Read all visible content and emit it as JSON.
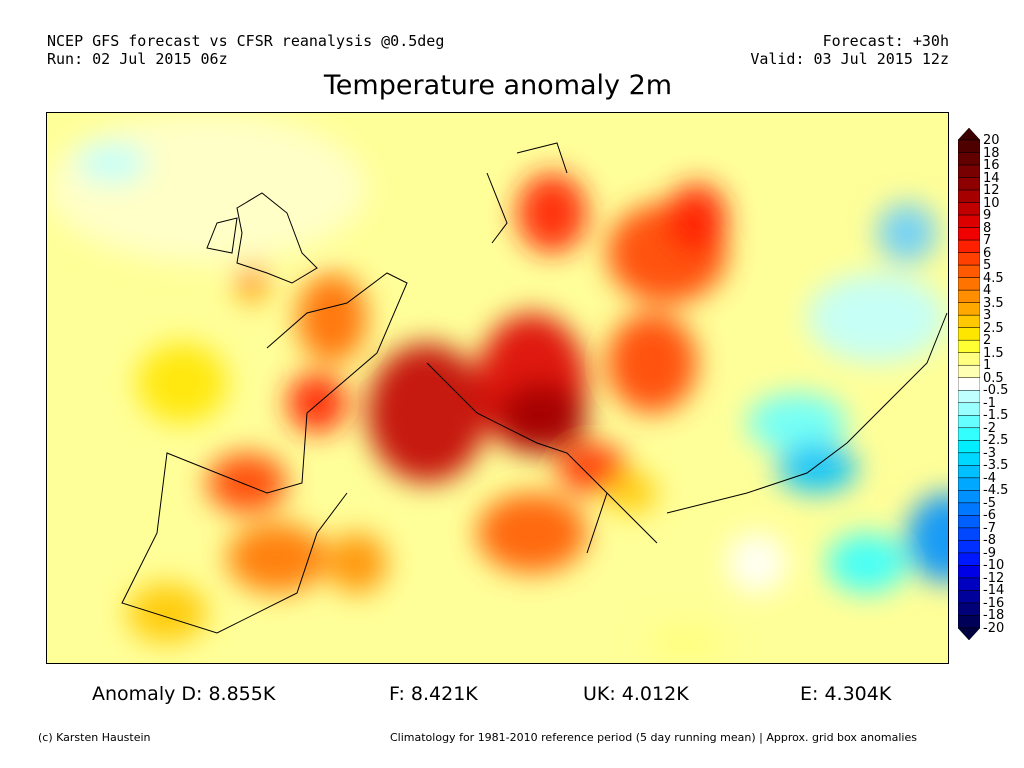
{
  "header": {
    "line1_left": "NCEP GFS forecast vs CFSR reanalysis @0.5deg",
    "line2_left": "Run: 02 Jul 2015 06z",
    "line1_right": "Forecast: +30h",
    "line2_right": "Valid: 03 Jul 2015 12z",
    "title": "Temperature anomaly 2m"
  },
  "stats": [
    {
      "label": "Anomaly D: 8.855K"
    },
    {
      "label": "F: 8.421K"
    },
    {
      "label": "UK: 4.012K"
    },
    {
      "label": "E: 4.304K"
    }
  ],
  "footer": {
    "credit": "(c) Karsten Haustein",
    "note": "Climatology for 1981-2010 reference period (5 day running mean) | Approx. grid box anomalies"
  },
  "colorbar": {
    "labels": [
      "20",
      "18",
      "16",
      "14",
      "12",
      "10",
      "9",
      "8",
      "7",
      "6",
      "5",
      "4.5",
      "4",
      "3.5",
      "3",
      "2.5",
      "2",
      "1.5",
      "1",
      "0.5",
      "-0.5",
      "-1",
      "-1.5",
      "-2",
      "-2.5",
      "-3",
      "-3.5",
      "-4",
      "-4.5",
      "-5",
      "-6",
      "-7",
      "-8",
      "-9",
      "-10",
      "-12",
      "-14",
      "-16",
      "-18",
      "-20"
    ],
    "colors": [
      "#3c0000",
      "#4e0000",
      "#620000",
      "#780000",
      "#8e0000",
      "#a60000",
      "#c00000",
      "#dc0000",
      "#f00000",
      "#ff2000",
      "#ff4000",
      "#ff5a00",
      "#ff7400",
      "#ff8e00",
      "#ffa800",
      "#ffc800",
      "#ffe600",
      "#ffff33",
      "#ffff80",
      "#ffffb3",
      "#ffffff",
      "#c0ffff",
      "#99ffff",
      "#66ffff",
      "#33ffff",
      "#00eeff",
      "#00d8ff",
      "#00c0ff",
      "#00a8ff",
      "#0090ff",
      "#0078ff",
      "#0060ff",
      "#0048ff",
      "#0030ff",
      "#0018ff",
      "#0000e6",
      "#0000c0",
      "#00009a",
      "#000078",
      "#000058",
      "#000040"
    ]
  }
}
